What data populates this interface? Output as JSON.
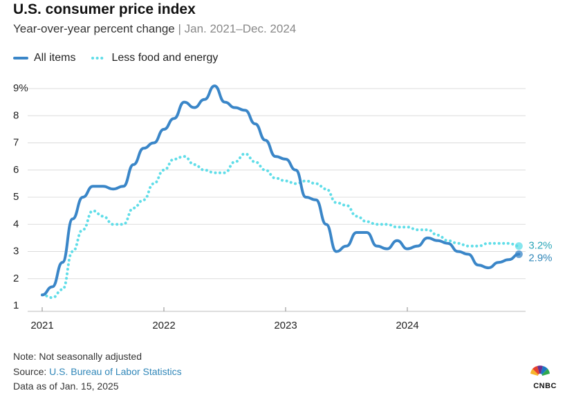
{
  "header": {
    "title": "U.S. consumer price index",
    "subtitle_main": "Year-over-year percent change",
    "subtitle_sep": "|",
    "subtitle_range": "Jan. 2021–Dec. 2024"
  },
  "legend": {
    "all_items": "All items",
    "core": "Less food and energy"
  },
  "colors": {
    "all_items": "#3a86c8",
    "core": "#5fdde8",
    "grid": "#dcdcdc",
    "end_label_all": "#2f86b8",
    "end_label_core": "#2aa6b8"
  },
  "chart_data": {
    "type": "line",
    "y_unit": "%",
    "ylim": [
      1,
      9
    ],
    "y_ticks": [
      "9%",
      "8",
      "7",
      "6",
      "5",
      "4",
      "3",
      "2",
      "1"
    ],
    "y_tick_values": [
      9,
      8,
      7,
      6,
      5,
      4,
      3,
      2,
      1
    ],
    "x_ticks": [
      "2021",
      "2022",
      "2023",
      "2024"
    ],
    "x": [
      "2021-01",
      "2021-02",
      "2021-03",
      "2021-04",
      "2021-05",
      "2021-06",
      "2021-07",
      "2021-08",
      "2021-09",
      "2021-10",
      "2021-11",
      "2021-12",
      "2022-01",
      "2022-02",
      "2022-03",
      "2022-04",
      "2022-05",
      "2022-06",
      "2022-07",
      "2022-08",
      "2022-09",
      "2022-10",
      "2022-11",
      "2022-12",
      "2023-01",
      "2023-02",
      "2023-03",
      "2023-04",
      "2023-05",
      "2023-06",
      "2023-07",
      "2023-08",
      "2023-09",
      "2023-10",
      "2023-11",
      "2023-12",
      "2024-01",
      "2024-02",
      "2024-03",
      "2024-04",
      "2024-05",
      "2024-06",
      "2024-07",
      "2024-08",
      "2024-09",
      "2024-10",
      "2024-11",
      "2024-12"
    ],
    "series": [
      {
        "name": "All items",
        "style": "solid",
        "values": [
          1.4,
          1.7,
          2.6,
          4.2,
          5.0,
          5.4,
          5.4,
          5.3,
          5.4,
          6.2,
          6.8,
          7.0,
          7.5,
          7.9,
          8.5,
          8.3,
          8.6,
          9.1,
          8.5,
          8.3,
          8.2,
          7.7,
          7.1,
          6.5,
          6.4,
          6.0,
          5.0,
          4.9,
          4.0,
          3.0,
          3.2,
          3.7,
          3.7,
          3.2,
          3.1,
          3.4,
          3.1,
          3.2,
          3.5,
          3.4,
          3.3,
          3.0,
          2.9,
          2.5,
          2.4,
          2.6,
          2.7,
          2.9
        ],
        "end_label": "2.9%"
      },
      {
        "name": "Less food and energy",
        "style": "dotted",
        "values": [
          1.4,
          1.3,
          1.6,
          3.0,
          3.8,
          4.5,
          4.3,
          4.0,
          4.0,
          4.6,
          4.9,
          5.5,
          6.0,
          6.4,
          6.5,
          6.2,
          6.0,
          5.9,
          5.9,
          6.3,
          6.6,
          6.3,
          6.0,
          5.7,
          5.6,
          5.5,
          5.6,
          5.5,
          5.3,
          4.8,
          4.7,
          4.3,
          4.1,
          4.0,
          4.0,
          3.9,
          3.9,
          3.8,
          3.8,
          3.6,
          3.4,
          3.3,
          3.2,
          3.2,
          3.3,
          3.3,
          3.3,
          3.2
        ],
        "end_label": "3.2%"
      }
    ]
  },
  "footer": {
    "note": "Note: Not seasonally adjusted",
    "source_label": "Source: ",
    "source_link": "U.S. Bureau of Labor Statistics",
    "data_as_of": "Data as of Jan. 15, 2025"
  },
  "logo": {
    "text": "CNBC"
  }
}
